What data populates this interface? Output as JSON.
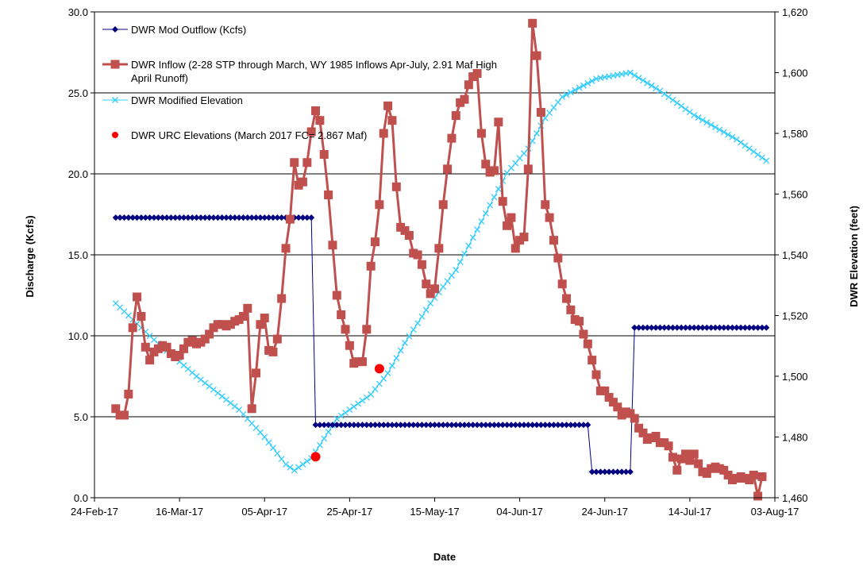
{
  "chart_data": {
    "type": "line",
    "title": "",
    "xlabel": "Date",
    "ylabel": "Discharge (Kcfs)",
    "y2label": "DWR Elevation (feet)",
    "ylim": [
      0,
      30
    ],
    "y2lim": [
      1460,
      1620
    ],
    "grid": true,
    "legend_position": "top-left inside plot",
    "x_ticks": [
      "24-Feb-17",
      "16-Mar-17",
      "05-Apr-17",
      "25-Apr-17",
      "15-May-17",
      "04-Jun-17",
      "24-Jun-17",
      "14-Jul-17",
      "03-Aug-17"
    ],
    "y_ticks": [
      "0.0",
      "5.0",
      "10.0",
      "15.0",
      "20.0",
      "25.0",
      "30.0"
    ],
    "y2_ticks": [
      "1,460",
      "1,480",
      "1,500",
      "1,520",
      "1,540",
      "1,560",
      "1,580",
      "1,600",
      "1,620"
    ],
    "x_start": "2017-02-24",
    "x_end": "2017-08-03",
    "series": [
      {
        "name": "DWR Mod Outflow (Kcfs)",
        "axis": "left",
        "color": "#000080",
        "marker": "diamond",
        "segments": [
          {
            "from": "2017-03-01",
            "to": "2017-04-16",
            "value": 17.3
          },
          {
            "from": "2017-04-17",
            "to": "2017-06-20",
            "value": 4.5
          },
          {
            "from": "2017-06-21",
            "to": "2017-06-30",
            "value": 1.6
          },
          {
            "from": "2017-07-01",
            "to": "2017-08-01",
            "value": 10.5
          }
        ]
      },
      {
        "name": "DWR Inflow (2-28 STP through March, WY 1985 Inflows Apr-July, 2.91 Maf High April Runoff)",
        "legend_lines": [
          "DWR Inflow (2-28 STP through March, WY 1985 Inflows Apr-July, 2.91 Maf High",
          "April Runoff)"
        ],
        "axis": "left",
        "color": "#C0504D",
        "marker": "square",
        "points": [
          [
            "2017-03-01",
            5.5
          ],
          [
            "2017-03-02",
            5.1
          ],
          [
            "2017-03-03",
            5.1
          ],
          [
            "2017-03-04",
            6.4
          ],
          [
            "2017-03-05",
            10.5
          ],
          [
            "2017-03-06",
            12.4
          ],
          [
            "2017-03-07",
            11.2
          ],
          [
            "2017-03-08",
            9.3
          ],
          [
            "2017-03-09",
            8.5
          ],
          [
            "2017-03-10",
            9.0
          ],
          [
            "2017-03-11",
            9.2
          ],
          [
            "2017-03-12",
            9.4
          ],
          [
            "2017-03-13",
            9.3
          ],
          [
            "2017-03-14",
            8.9
          ],
          [
            "2017-03-15",
            8.7
          ],
          [
            "2017-03-16",
            8.8
          ],
          [
            "2017-03-17",
            9.2
          ],
          [
            "2017-03-18",
            9.6
          ],
          [
            "2017-03-19",
            9.7
          ],
          [
            "2017-03-20",
            9.5
          ],
          [
            "2017-03-21",
            9.6
          ],
          [
            "2017-03-22",
            9.8
          ],
          [
            "2017-03-23",
            10.1
          ],
          [
            "2017-03-24",
            10.5
          ],
          [
            "2017-03-25",
            10.7
          ],
          [
            "2017-03-26",
            10.7
          ],
          [
            "2017-03-27",
            10.6
          ],
          [
            "2017-03-28",
            10.7
          ],
          [
            "2017-03-29",
            10.9
          ],
          [
            "2017-03-30",
            11.0
          ],
          [
            "2017-03-31",
            11.2
          ],
          [
            "2017-04-01",
            11.7
          ],
          [
            "2017-04-02",
            5.5
          ],
          [
            "2017-04-03",
            7.7
          ],
          [
            "2017-04-04",
            10.7
          ],
          [
            "2017-04-05",
            11.1
          ],
          [
            "2017-04-06",
            9.1
          ],
          [
            "2017-04-07",
            9.0
          ],
          [
            "2017-04-08",
            9.8
          ],
          [
            "2017-04-09",
            12.3
          ],
          [
            "2017-04-10",
            15.4
          ],
          [
            "2017-04-11",
            17.2
          ],
          [
            "2017-04-12",
            20.7
          ],
          [
            "2017-04-13",
            19.3
          ],
          [
            "2017-04-14",
            19.5
          ],
          [
            "2017-04-15",
            20.7
          ],
          [
            "2017-04-16",
            22.6
          ],
          [
            "2017-04-17",
            23.9
          ],
          [
            "2017-04-18",
            23.3
          ],
          [
            "2017-04-19",
            21.2
          ],
          [
            "2017-04-20",
            18.7
          ],
          [
            "2017-04-21",
            15.6
          ],
          [
            "2017-04-22",
            12.5
          ],
          [
            "2017-04-23",
            11.3
          ],
          [
            "2017-04-24",
            10.4
          ],
          [
            "2017-04-25",
            9.4
          ],
          [
            "2017-04-26",
            8.3
          ],
          [
            "2017-04-27",
            8.4
          ],
          [
            "2017-04-28",
            8.4
          ],
          [
            "2017-04-29",
            10.4
          ],
          [
            "2017-04-30",
            14.3
          ],
          [
            "2017-05-01",
            15.8
          ],
          [
            "2017-05-02",
            18.1
          ],
          [
            "2017-05-03",
            22.5
          ],
          [
            "2017-05-04",
            24.2
          ],
          [
            "2017-05-05",
            23.3
          ],
          [
            "2017-05-06",
            19.2
          ],
          [
            "2017-05-07",
            16.7
          ],
          [
            "2017-05-08",
            16.5
          ],
          [
            "2017-05-09",
            16.2
          ],
          [
            "2017-05-10",
            15.1
          ],
          [
            "2017-05-11",
            15.0
          ],
          [
            "2017-05-12",
            14.4
          ],
          [
            "2017-05-13",
            13.2
          ],
          [
            "2017-05-14",
            12.6
          ],
          [
            "2017-05-15",
            12.9
          ],
          [
            "2017-05-16",
            15.4
          ],
          [
            "2017-05-17",
            18.1
          ],
          [
            "2017-05-18",
            20.3
          ],
          [
            "2017-05-19",
            22.2
          ],
          [
            "2017-05-20",
            23.6
          ],
          [
            "2017-05-21",
            24.4
          ],
          [
            "2017-05-22",
            24.6
          ],
          [
            "2017-05-23",
            25.5
          ],
          [
            "2017-05-24",
            26.0
          ],
          [
            "2017-05-25",
            26.2
          ],
          [
            "2017-05-26",
            22.5
          ],
          [
            "2017-05-27",
            20.6
          ],
          [
            "2017-05-28",
            20.1
          ],
          [
            "2017-05-29",
            20.2
          ],
          [
            "2017-05-30",
            23.2
          ],
          [
            "2017-05-31",
            18.3
          ],
          [
            "2017-06-01",
            16.8
          ],
          [
            "2017-06-02",
            17.3
          ],
          [
            "2017-06-03",
            15.4
          ],
          [
            "2017-06-04",
            15.9
          ],
          [
            "2017-06-05",
            16.1
          ],
          [
            "2017-06-06",
            20.3
          ],
          [
            "2017-06-07",
            29.3
          ],
          [
            "2017-06-08",
            27.3
          ],
          [
            "2017-06-09",
            23.8
          ],
          [
            "2017-06-10",
            18.1
          ],
          [
            "2017-06-11",
            17.3
          ],
          [
            "2017-06-12",
            15.9
          ],
          [
            "2017-06-13",
            14.8
          ],
          [
            "2017-06-14",
            13.2
          ],
          [
            "2017-06-15",
            12.3
          ],
          [
            "2017-06-16",
            11.6
          ],
          [
            "2017-06-17",
            11.0
          ],
          [
            "2017-06-18",
            10.9
          ],
          [
            "2017-06-19",
            10.1
          ],
          [
            "2017-06-20",
            9.5
          ],
          [
            "2017-06-21",
            8.5
          ],
          [
            "2017-06-22",
            7.6
          ],
          [
            "2017-06-23",
            6.6
          ],
          [
            "2017-06-24",
            6.6
          ],
          [
            "2017-06-25",
            6.2
          ],
          [
            "2017-06-26",
            5.9
          ],
          [
            "2017-06-27",
            5.6
          ],
          [
            "2017-06-28",
            5.1
          ],
          [
            "2017-06-29",
            5.3
          ],
          [
            "2017-06-30",
            5.2
          ],
          [
            "2017-07-01",
            4.9
          ],
          [
            "2017-07-02",
            4.3
          ],
          [
            "2017-07-03",
            4.0
          ],
          [
            "2017-07-04",
            3.6
          ],
          [
            "2017-07-05",
            3.7
          ],
          [
            "2017-07-06",
            3.8
          ],
          [
            "2017-07-07",
            3.4
          ],
          [
            "2017-07-08",
            3.4
          ],
          [
            "2017-07-09",
            3.2
          ],
          [
            "2017-07-10",
            2.5
          ],
          [
            "2017-07-11",
            1.7
          ],
          [
            "2017-07-12",
            2.4
          ],
          [
            "2017-07-13",
            2.7
          ],
          [
            "2017-07-14",
            2.3
          ],
          [
            "2017-07-15",
            2.7
          ],
          [
            "2017-07-16",
            2.1
          ],
          [
            "2017-07-17",
            1.6
          ],
          [
            "2017-07-18",
            1.5
          ],
          [
            "2017-07-19",
            1.8
          ],
          [
            "2017-07-20",
            1.9
          ],
          [
            "2017-07-21",
            1.8
          ],
          [
            "2017-07-22",
            1.7
          ],
          [
            "2017-07-23",
            1.4
          ],
          [
            "2017-07-24",
            1.1
          ],
          [
            "2017-07-25",
            1.2
          ],
          [
            "2017-07-26",
            1.3
          ],
          [
            "2017-07-27",
            1.2
          ],
          [
            "2017-07-28",
            1.1
          ],
          [
            "2017-07-29",
            1.4
          ],
          [
            "2017-07-30",
            0.1
          ],
          [
            "2017-07-31",
            1.3
          ]
        ]
      },
      {
        "name": "DWR Modified Elevation",
        "axis": "right",
        "color": "#33CCFF",
        "marker": "x",
        "knots": [
          [
            "2017-03-01",
            1524
          ],
          [
            "2017-03-10",
            1512
          ],
          [
            "2017-03-20",
            1500
          ],
          [
            "2017-03-30",
            1489
          ],
          [
            "2017-04-05",
            1480
          ],
          [
            "2017-04-10",
            1471
          ],
          [
            "2017-04-12",
            1469
          ],
          [
            "2017-04-16",
            1473
          ],
          [
            "2017-04-22",
            1486
          ],
          [
            "2017-04-30",
            1494
          ],
          [
            "2017-05-04",
            1501
          ],
          [
            "2017-05-08",
            1511
          ],
          [
            "2017-05-14",
            1524
          ],
          [
            "2017-05-20",
            1535
          ],
          [
            "2017-05-26",
            1551
          ],
          [
            "2017-06-01",
            1567
          ],
          [
            "2017-06-06",
            1575
          ],
          [
            "2017-06-10",
            1585
          ],
          [
            "2017-06-14",
            1592
          ],
          [
            "2017-06-22",
            1598
          ],
          [
            "2017-06-30",
            1600
          ],
          [
            "2017-07-07",
            1594
          ],
          [
            "2017-07-15",
            1586
          ],
          [
            "2017-07-25",
            1578
          ],
          [
            "2017-08-01",
            1571
          ]
        ]
      },
      {
        "name": "DWR URC Elevations (March 2017 FC= 2.867 Maf)",
        "axis": "right",
        "color": "#FF0000",
        "marker": "circle",
        "points": [
          [
            "2017-04-17",
            1473.5
          ],
          [
            "2017-05-02",
            1502.5
          ]
        ]
      }
    ]
  }
}
